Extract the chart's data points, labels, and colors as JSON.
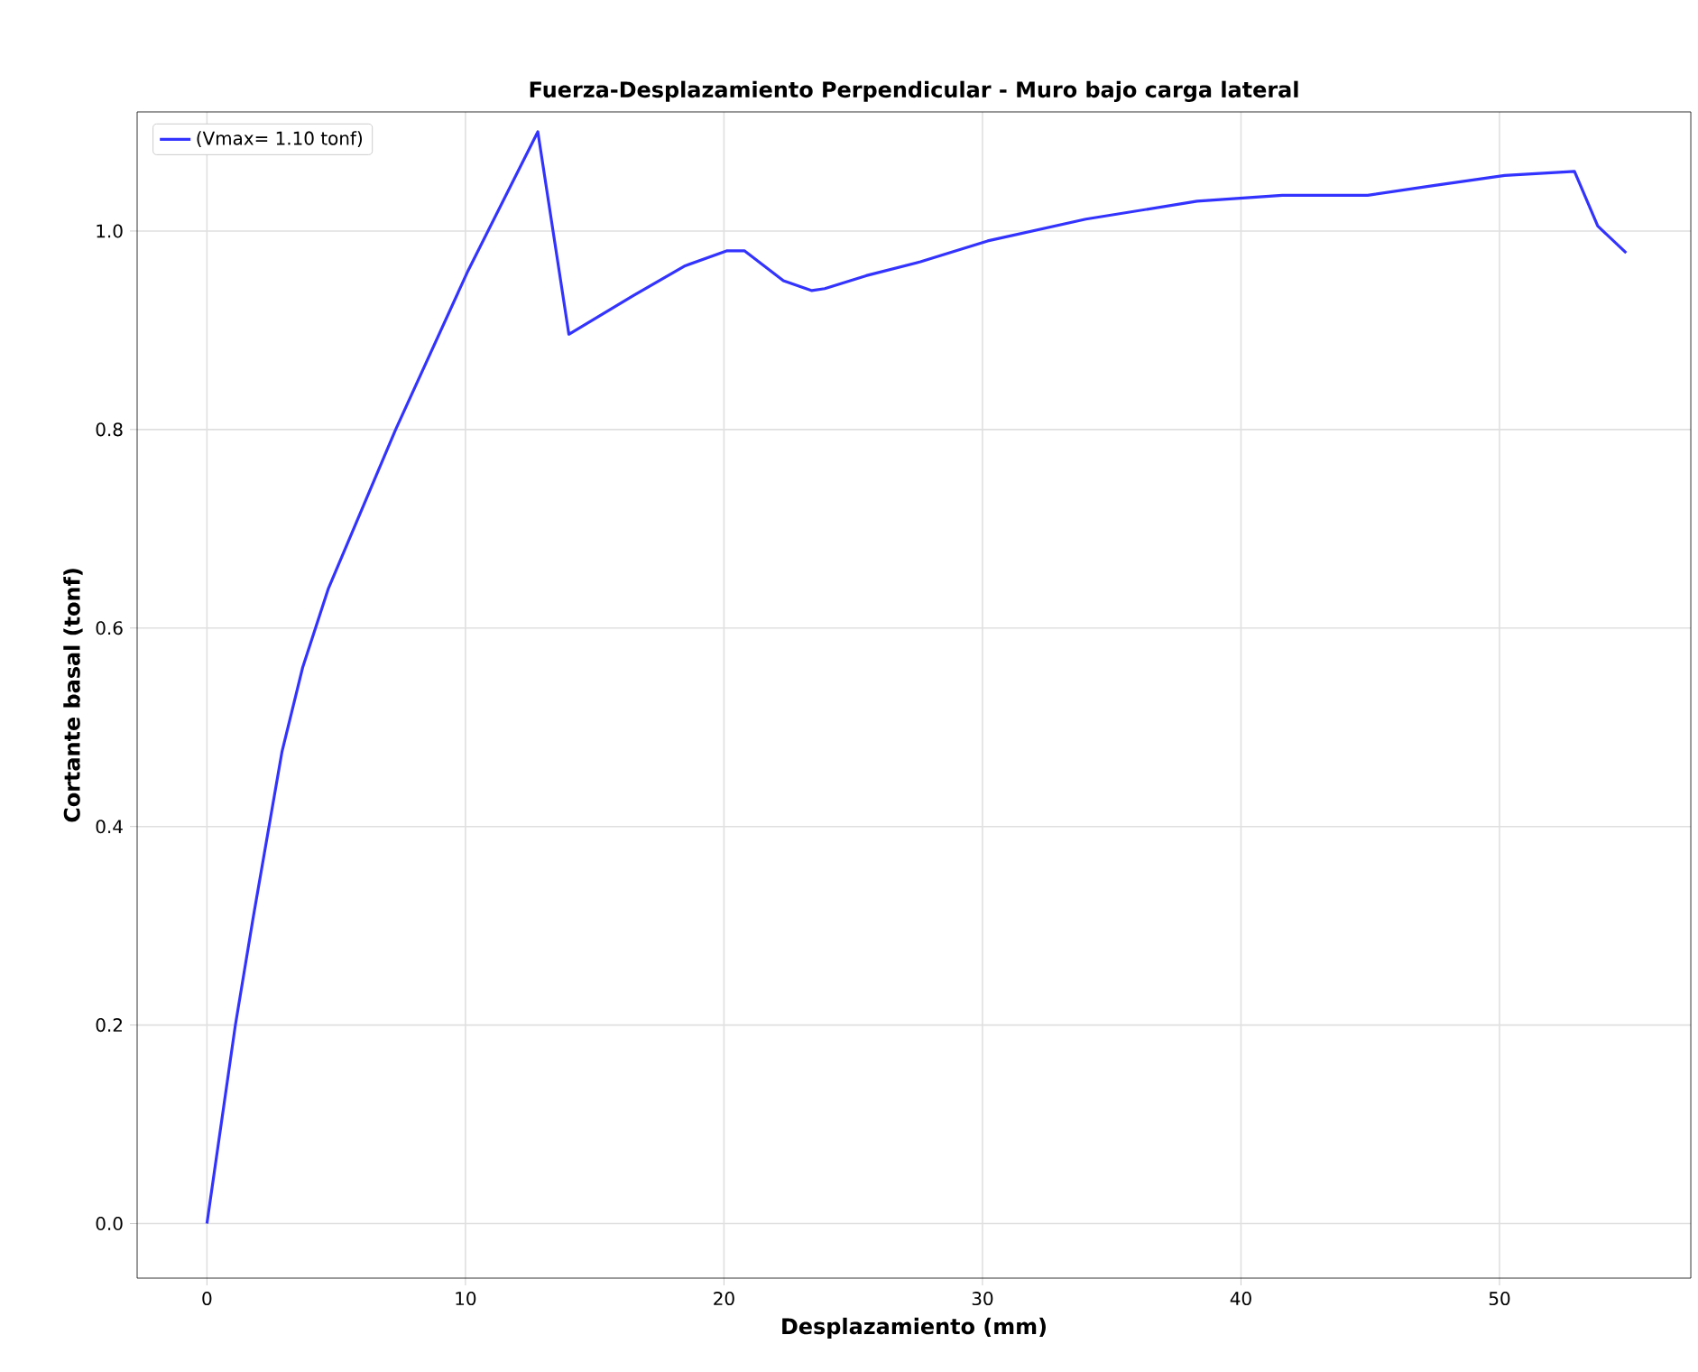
{
  "chart_data": {
    "type": "line",
    "title": "Fuerza-Desplazamiento Perpendicular - Muro bajo carga lateral",
    "xlabel": "Desplazamiento (mm)",
    "ylabel": "Cortante basal (tonf)",
    "x": [
      0,
      1.1,
      1.8,
      2.9,
      3.7,
      4.7,
      7.3,
      10.1,
      12.8,
      14.0,
      16.5,
      18.5,
      20.1,
      20.8,
      22.3,
      23.4,
      23.9,
      25.5,
      27.6,
      30.2,
      34.0,
      38.3,
      41.6,
      44.9,
      47.5,
      50.2,
      52.9,
      53.8,
      54.9
    ],
    "series": [
      {
        "name": "(Vmax= 1.10 tonf)",
        "color": "#3333ff",
        "values": [
          0,
          0.2,
          0.31,
          0.475,
          0.56,
          0.64,
          0.8,
          0.96,
          1.1,
          0.896,
          0.935,
          0.965,
          0.98,
          0.98,
          0.95,
          0.94,
          0.942,
          0.955,
          0.969,
          0.99,
          1.012,
          1.03,
          1.036,
          1.036,
          1.046,
          1.056,
          1.06,
          1.005,
          0.978
        ]
      }
    ],
    "xlim": [
      -2.7,
      57.4
    ],
    "ylim": [
      -0.055,
      1.12
    ],
    "xticks": [
      0,
      10,
      20,
      30,
      40,
      50
    ],
    "yticks": [
      {
        "value": 0,
        "label": "0.0"
      },
      0.2,
      0.4,
      0.6,
      0.8,
      {
        "value": 1,
        "label": "1.0"
      }
    ],
    "grid": true,
    "legend": "top left",
    "marker": "none",
    "line_style": "solid"
  }
}
